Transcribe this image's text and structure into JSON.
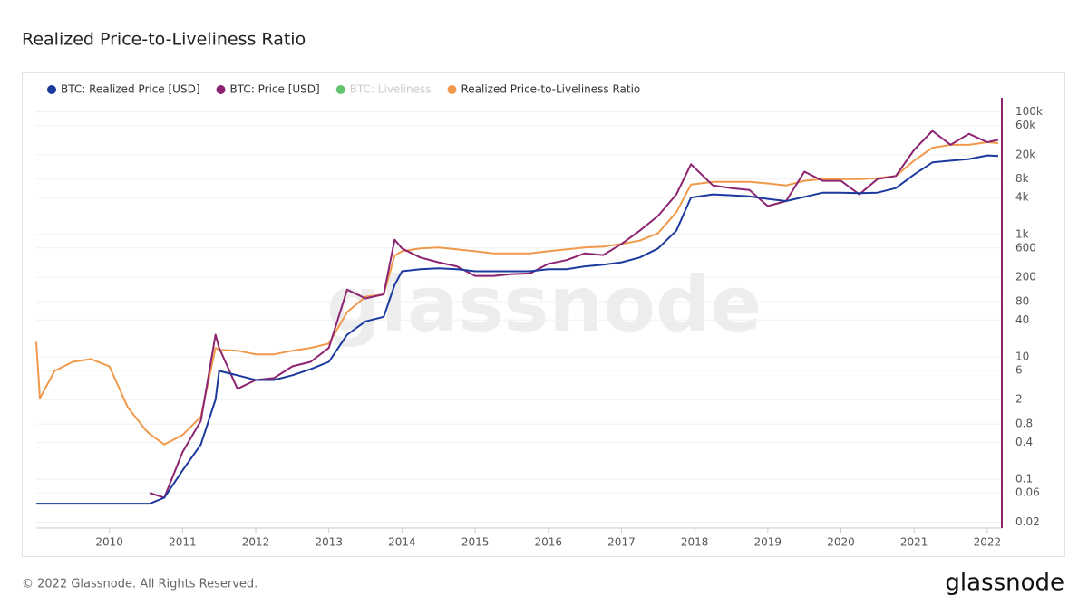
{
  "chart_data": {
    "type": "line",
    "title": "Realized Price-to-Liveliness Ratio",
    "watermark": "glassnode",
    "footer": "© 2022 Glassnode. All Rights Reserved.",
    "logo": "glassnode",
    "log_scale_y": true,
    "grid": true,
    "legend": "top-left",
    "x": [
      2009.0,
      2009.05,
      2009.25,
      2009.5,
      2009.75,
      2010.0,
      2010.25,
      2010.5,
      2010.55,
      2010.75,
      2011.0,
      2011.25,
      2011.45,
      2011.5,
      2011.75,
      2012.0,
      2012.25,
      2012.5,
      2012.75,
      2013.0,
      2013.25,
      2013.5,
      2013.75,
      2013.9,
      2014.0,
      2014.25,
      2014.5,
      2014.75,
      2015.0,
      2015.25,
      2015.5,
      2015.75,
      2016.0,
      2016.25,
      2016.5,
      2016.75,
      2017.0,
      2017.25,
      2017.5,
      2017.75,
      2017.95,
      2018.25,
      2018.5,
      2018.75,
      2019.0,
      2019.25,
      2019.5,
      2019.75,
      2020.0,
      2020.25,
      2020.5,
      2020.75,
      2021.0,
      2021.25,
      2021.5,
      2021.75,
      2022.0,
      2022.15
    ],
    "xlim": [
      2009.0,
      2022.2
    ],
    "xticks": [
      2010,
      2011,
      2012,
      2013,
      2014,
      2015,
      2016,
      2017,
      2018,
      2019,
      2020,
      2021,
      2022
    ],
    "ylim": [
      0.016,
      170000
    ],
    "yticks": [
      0.02,
      0.06,
      0.1,
      0.4,
      0.8,
      2,
      6,
      10,
      40,
      80,
      200,
      600,
      {
        "value": 1000,
        "label": "1k"
      },
      {
        "value": 4000,
        "label": "4k"
      },
      {
        "value": 8000,
        "label": "8k"
      },
      {
        "value": 20000,
        "label": "20k"
      },
      {
        "value": 60000,
        "label": "60k"
      },
      {
        "value": 100000,
        "label": "100k"
      }
    ],
    "series": [
      {
        "name": "BTC: Realized Price [USD]",
        "color": "#1c3a9e",
        "values": [
          0.04,
          0.04,
          0.04,
          0.04,
          0.04,
          0.04,
          0.04,
          0.04,
          0.04,
          0.05,
          0.14,
          0.37,
          2,
          5.9,
          5,
          4.2,
          4.2,
          5,
          6.3,
          8.3,
          23,
          38,
          45,
          150,
          250,
          270,
          280,
          270,
          250,
          250,
          250,
          250,
          270,
          270,
          300,
          320,
          350,
          420,
          590,
          1150,
          4000,
          4500,
          4350,
          4200,
          3800,
          3500,
          4100,
          4800,
          4800,
          4700,
          4800,
          5700,
          9500,
          15000,
          16000,
          17000,
          19500,
          19000
        ]
      },
      {
        "name": "BTC: Price [USD]",
        "color": "#8c2471",
        "values": [
          null,
          null,
          null,
          null,
          null,
          null,
          null,
          null,
          0.06,
          0.05,
          0.28,
          0.9,
          23,
          14,
          3,
          4.2,
          4.5,
          7,
          8.3,
          14,
          125,
          90,
          105,
          820,
          590,
          420,
          350,
          300,
          210,
          210,
          225,
          230,
          330,
          380,
          490,
          460,
          700,
          1150,
          2000,
          4500,
          14000,
          6300,
          5700,
          5300,
          2900,
          3500,
          10600,
          7500,
          7500,
          4500,
          8000,
          9000,
          24000,
          49000,
          29000,
          44000,
          32000,
          35000
        ]
      },
      {
        "name": "BTC: Liveliness",
        "color": "#3cb44b",
        "hidden": true,
        "values": [
          null,
          null,
          null,
          null,
          null,
          null,
          null,
          null,
          null,
          null,
          null,
          null,
          null,
          null,
          null,
          null,
          null,
          null,
          null,
          null,
          null,
          null,
          null,
          null,
          null,
          null,
          null,
          null,
          null,
          null,
          null,
          null,
          null,
          null,
          null,
          null,
          null,
          null,
          null,
          null,
          null,
          null,
          null,
          null,
          null,
          null,
          null,
          null,
          null,
          null,
          null,
          null,
          null,
          null,
          null,
          null,
          null,
          null
        ]
      },
      {
        "name": "Realized Price-to-Liveliness Ratio",
        "color": "#f0994a",
        "values": [
          17.5,
          2.1,
          5.9,
          8.3,
          9.2,
          7,
          1.5,
          0.63,
          0.55,
          0.37,
          0.53,
          1.05,
          14,
          13,
          12.6,
          11,
          11,
          12.6,
          14,
          16.5,
          54,
          96,
          105,
          450,
          530,
          590,
          610,
          570,
          530,
          490,
          490,
          490,
          530,
          570,
          610,
          630,
          700,
          790,
          1050,
          2300,
          6500,
          7200,
          7200,
          7200,
          6800,
          6300,
          7500,
          8000,
          8000,
          8000,
          8300,
          9000,
          16000,
          26000,
          29000,
          29000,
          32000,
          31000
        ]
      }
    ]
  }
}
